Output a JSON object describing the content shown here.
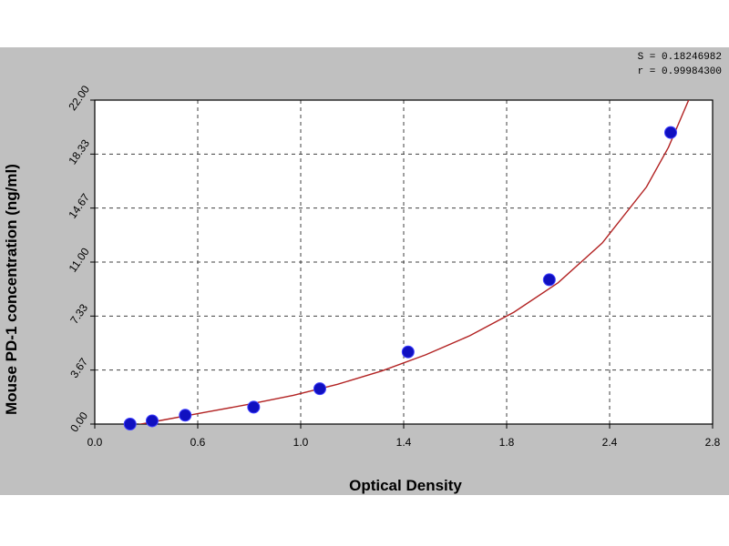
{
  "chart_data": {
    "type": "scatter",
    "xlabel": "Optical Density",
    "ylabel": "Mouse PD-1 concentration (ng/ml)",
    "xlim": [
      0.0,
      2.8
    ],
    "ylim": [
      0.0,
      22.0
    ],
    "x_ticks": [
      "0.0",
      "0.6",
      "1.0",
      "1.4",
      "1.8",
      "2.4",
      "2.8"
    ],
    "y_ticks": [
      "0.00",
      "3.67",
      "7.33",
      "11.00",
      "14.67",
      "18.33",
      "22.00"
    ],
    "grid": true,
    "points": [
      {
        "x": 0.16,
        "y": 0.0
      },
      {
        "x": 0.26,
        "y": 0.22
      },
      {
        "x": 0.41,
        "y": 0.6
      },
      {
        "x": 0.72,
        "y": 1.15
      },
      {
        "x": 1.02,
        "y": 2.4
      },
      {
        "x": 1.42,
        "y": 4.9
      },
      {
        "x": 2.06,
        "y": 9.8
      },
      {
        "x": 2.61,
        "y": 19.8
      }
    ],
    "fit_curve": [
      {
        "x": 0.1,
        "y": -0.3
      },
      {
        "x": 0.3,
        "y": 0.25
      },
      {
        "x": 0.5,
        "y": 0.8
      },
      {
        "x": 0.7,
        "y": 1.35
      },
      {
        "x": 0.9,
        "y": 1.95
      },
      {
        "x": 1.1,
        "y": 2.7
      },
      {
        "x": 1.3,
        "y": 3.6
      },
      {
        "x": 1.5,
        "y": 4.7
      },
      {
        "x": 1.7,
        "y": 6.0
      },
      {
        "x": 1.9,
        "y": 7.6
      },
      {
        "x": 2.1,
        "y": 9.6
      },
      {
        "x": 2.3,
        "y": 12.3
      },
      {
        "x": 2.5,
        "y": 16.1
      },
      {
        "x": 2.6,
        "y": 18.8
      },
      {
        "x": 2.7,
        "y": 22.3
      }
    ],
    "stats": [
      "S = 0.18246982",
      "r = 0.99984300"
    ],
    "colors": {
      "frame": "#c0c0c0",
      "plot_bg": "#ffffff",
      "curve": "#b22222",
      "marker": "#1010c0",
      "grid": "#404040"
    }
  }
}
